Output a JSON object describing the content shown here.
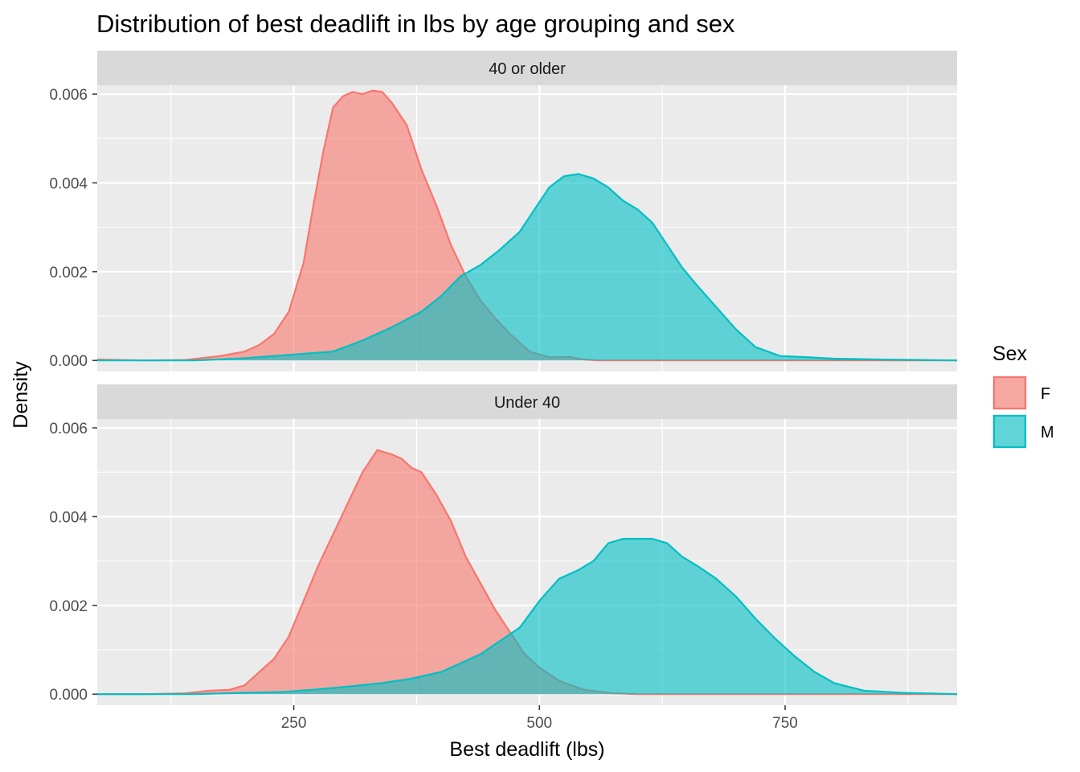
{
  "chart_data": {
    "type": "area",
    "title": "Distribution of best deadlift in lbs by age grouping and sex",
    "xlabel": "Best deadlift (lbs)",
    "ylabel": "Density",
    "xlim": [
      50,
      925
    ],
    "ylim": [
      -0.00025,
      0.0062
    ],
    "x_ticks": [
      250,
      500,
      750
    ],
    "x_tick_labels": [
      "250",
      "500",
      "750"
    ],
    "x_minor_ticks": [
      125,
      375,
      625,
      875
    ],
    "y_ticks": [
      0,
      0.002,
      0.004,
      0.006
    ],
    "y_tick_labels": [
      "0.000",
      "0.002",
      "0.004",
      "0.006"
    ],
    "y_minor_ticks": [
      0.001,
      0.003,
      0.005
    ],
    "grid": true,
    "legend": {
      "title": "Sex",
      "position": "right",
      "entries": [
        {
          "name": "F",
          "fill": "#F8766D",
          "stroke": "#F8766D"
        },
        {
          "name": "M",
          "fill": "#00BFC4",
          "stroke": "#00BFC4"
        }
      ]
    },
    "fill_opacity": 0.6,
    "panels": [
      {
        "strip": "40 or older",
        "series": [
          {
            "name": "F",
            "points": [
              [
                50,
                2e-05
              ],
              [
                100,
                0.0
              ],
              [
                140,
                1e-05
              ],
              [
                175,
                0.0001
              ],
              [
                200,
                0.0002
              ],
              [
                215,
                0.00035
              ],
              [
                230,
                0.0006
              ],
              [
                245,
                0.0011
              ],
              [
                260,
                0.0022
              ],
              [
                270,
                0.0035
              ],
              [
                280,
                0.0047
              ],
              [
                290,
                0.0057
              ],
              [
                300,
                0.00595
              ],
              [
                310,
                0.00605
              ],
              [
                320,
                0.006
              ],
              [
                330,
                0.00608
              ],
              [
                340,
                0.00605
              ],
              [
                350,
                0.0058
              ],
              [
                365,
                0.0053
              ],
              [
                380,
                0.0043
              ],
              [
                395,
                0.0035
              ],
              [
                410,
                0.0026
              ],
              [
                425,
                0.0019
              ],
              [
                440,
                0.00135
              ],
              [
                455,
                0.00095
              ],
              [
                470,
                0.0006
              ],
              [
                490,
                0.0002
              ],
              [
                510,
                7e-05
              ],
              [
                530,
                8e-05
              ],
              [
                545,
                2e-05
              ],
              [
                560,
                0.0
              ],
              [
                600,
                0.0
              ],
              [
                925,
                0.0
              ]
            ]
          },
          {
            "name": "M",
            "points": [
              [
                50,
                0.0
              ],
              [
                150,
                0.0
              ],
              [
                200,
                5e-05
              ],
              [
                230,
                0.0001
              ],
              [
                260,
                0.00015
              ],
              [
                290,
                0.0002
              ],
              [
                320,
                0.00045
              ],
              [
                350,
                0.00075
              ],
              [
                380,
                0.0011
              ],
              [
                400,
                0.00145
              ],
              [
                420,
                0.0019
              ],
              [
                440,
                0.00215
              ],
              [
                460,
                0.0025
              ],
              [
                480,
                0.0029
              ],
              [
                495,
                0.0034
              ],
              [
                510,
                0.0039
              ],
              [
                525,
                0.00415
              ],
              [
                540,
                0.0042
              ],
              [
                555,
                0.0041
              ],
              [
                570,
                0.0039
              ],
              [
                585,
                0.0036
              ],
              [
                600,
                0.0034
              ],
              [
                615,
                0.0031
              ],
              [
                630,
                0.0026
              ],
              [
                645,
                0.0021
              ],
              [
                660,
                0.0017
              ],
              [
                680,
                0.0012
              ],
              [
                700,
                0.0007
              ],
              [
                720,
                0.0003
              ],
              [
                745,
                0.0001
              ],
              [
                775,
                7e-05
              ],
              [
                800,
                4e-05
              ],
              [
                850,
                2e-05
              ],
              [
                925,
                0.0
              ]
            ]
          }
        ]
      },
      {
        "strip": "Under 40",
        "series": [
          {
            "name": "F",
            "points": [
              [
                50,
                0.0
              ],
              [
                100,
                0.0
              ],
              [
                140,
                2e-05
              ],
              [
                165,
                8e-05
              ],
              [
                185,
                0.0001
              ],
              [
                200,
                0.0002
              ],
              [
                215,
                0.0005
              ],
              [
                230,
                0.0008
              ],
              [
                245,
                0.0013
              ],
              [
                260,
                0.0021
              ],
              [
                275,
                0.0029
              ],
              [
                290,
                0.0036
              ],
              [
                305,
                0.0043
              ],
              [
                320,
                0.005
              ],
              [
                335,
                0.0055
              ],
              [
                350,
                0.0054
              ],
              [
                360,
                0.0053
              ],
              [
                370,
                0.0051
              ],
              [
                380,
                0.005
              ],
              [
                395,
                0.0045
              ],
              [
                410,
                0.0039
              ],
              [
                425,
                0.0031
              ],
              [
                440,
                0.0025
              ],
              [
                455,
                0.0019
              ],
              [
                470,
                0.0014
              ],
              [
                485,
                0.0009
              ],
              [
                500,
                0.0006
              ],
              [
                520,
                0.0003
              ],
              [
                545,
                0.0001
              ],
              [
                575,
                2e-05
              ],
              [
                600,
                0.0
              ],
              [
                925,
                0.0
              ]
            ]
          },
          {
            "name": "M",
            "points": [
              [
                50,
                0.0
              ],
              [
                150,
                0.0
              ],
              [
                200,
                3e-05
              ],
              [
                240,
                5e-05
              ],
              [
                270,
                0.0001
              ],
              [
                310,
                0.00018
              ],
              [
                340,
                0.00025
              ],
              [
                370,
                0.00035
              ],
              [
                400,
                0.0005
              ],
              [
                420,
                0.0007
              ],
              [
                440,
                0.0009
              ],
              [
                460,
                0.0012
              ],
              [
                480,
                0.0015
              ],
              [
                500,
                0.0021
              ],
              [
                520,
                0.0026
              ],
              [
                540,
                0.0028
              ],
              [
                555,
                0.003
              ],
              [
                570,
                0.0034
              ],
              [
                585,
                0.0035
              ],
              [
                600,
                0.0035
              ],
              [
                615,
                0.0035
              ],
              [
                630,
                0.0034
              ],
              [
                645,
                0.0031
              ],
              [
                660,
                0.0029
              ],
              [
                680,
                0.0026
              ],
              [
                700,
                0.0022
              ],
              [
                720,
                0.0017
              ],
              [
                740,
                0.00125
              ],
              [
                760,
                0.00085
              ],
              [
                780,
                0.0005
              ],
              [
                800,
                0.00025
              ],
              [
                830,
                8e-05
              ],
              [
                870,
                3e-05
              ],
              [
                925,
                0.0
              ]
            ]
          }
        ]
      }
    ]
  }
}
